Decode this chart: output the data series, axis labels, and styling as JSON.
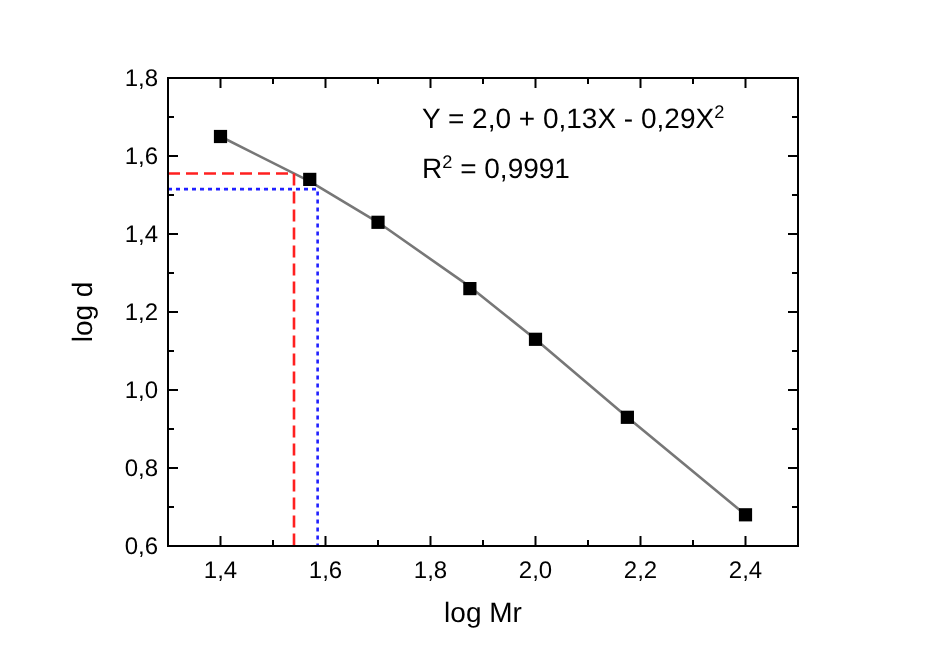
{
  "chart_data": {
    "type": "scatter",
    "xlabel": "log Mr",
    "ylabel": "log d",
    "xlim": [
      1.3,
      2.5
    ],
    "ylim": [
      0.6,
      1.8
    ],
    "xticks": [
      {
        "value": 1.3,
        "label": null
      },
      {
        "value": 1.4,
        "label": "1,4"
      },
      {
        "value": 1.5,
        "label": null
      },
      {
        "value": 1.6,
        "label": "1,6"
      },
      {
        "value": 1.7,
        "label": null
      },
      {
        "value": 1.8,
        "label": "1,8"
      },
      {
        "value": 1.9,
        "label": null
      },
      {
        "value": 2.0,
        "label": "2,0"
      },
      {
        "value": 2.1,
        "label": null
      },
      {
        "value": 2.2,
        "label": "2,2"
      },
      {
        "value": 2.3,
        "label": null
      },
      {
        "value": 2.4,
        "label": "2,4"
      },
      {
        "value": 2.5,
        "label": null
      }
    ],
    "yticks": [
      {
        "value": 0.6,
        "label": "0,6"
      },
      {
        "value": 0.7,
        "label": null
      },
      {
        "value": 0.8,
        "label": "0,8"
      },
      {
        "value": 0.9,
        "label": null
      },
      {
        "value": 1.0,
        "label": "1,0"
      },
      {
        "value": 1.1,
        "label": null
      },
      {
        "value": 1.2,
        "label": "1,2"
      },
      {
        "value": 1.3,
        "label": null
      },
      {
        "value": 1.4,
        "label": "1,4"
      },
      {
        "value": 1.5,
        "label": null
      },
      {
        "value": 1.6,
        "label": "1,6"
      },
      {
        "value": 1.7,
        "label": null
      },
      {
        "value": 1.8,
        "label": "1,8"
      }
    ],
    "grid": false,
    "marker": "square",
    "series": [
      {
        "type": "line",
        "color": "#777777",
        "line_style": "solid",
        "marker": "none",
        "x": [
          1.4,
          1.57,
          1.7,
          1.875,
          2.0,
          2.175,
          2.4
        ],
        "values": [
          1.65,
          1.535,
          1.43,
          1.265,
          1.13,
          0.93,
          0.68
        ]
      },
      {
        "type": "line",
        "color": "#ff2020",
        "line_style": "dashed",
        "marker": "none",
        "x": [
          1.3,
          1.54,
          1.54
        ],
        "values": [
          1.555,
          1.555,
          0.6
        ]
      },
      {
        "type": "line",
        "color": "#2020ff",
        "line_style": "dotted",
        "marker": "none",
        "x": [
          1.3,
          1.585,
          1.585
        ],
        "values": [
          1.515,
          1.515,
          0.6
        ]
      },
      {
        "color": "#000000",
        "x": [
          1.4,
          1.57,
          1.7,
          1.875,
          2.0,
          2.175,
          2.4
        ],
        "values": [
          1.65,
          1.54,
          1.43,
          1.26,
          1.13,
          0.93,
          0.68
        ]
      }
    ],
    "annotations": [
      "Y = 2,0 + 0,13X - 0,29X$^{2}$",
      "R$^{2}$ = 0,9991"
    ]
  }
}
